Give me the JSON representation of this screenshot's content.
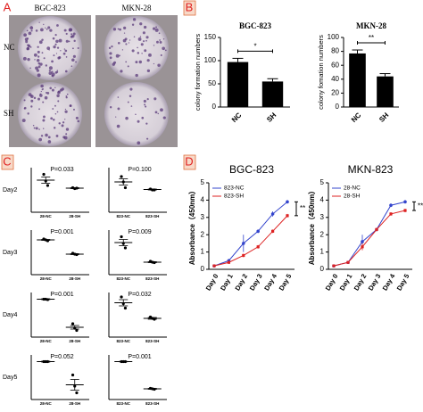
{
  "panels": {
    "letters": [
      "A",
      "B",
      "C",
      "D"
    ],
    "photo_columns": [
      "BGC-823",
      "MKN-28"
    ],
    "photo_rows": [
      "NC",
      "SH"
    ],
    "c_rows": [
      "Day2",
      "Day3",
      "Day4",
      "Day5"
    ]
  },
  "chart_data": [
    {
      "type": "bar",
      "title": "BGC-823",
      "y_label": "colony formation numbers",
      "categories": [
        "NC",
        "SH"
      ],
      "values": [
        97,
        55
      ],
      "errors": [
        8,
        6
      ],
      "color": "#000000",
      "ylim": [
        0,
        150
      ],
      "yticks": [
        0,
        50,
        100,
        150
      ],
      "annotation": "*"
    },
    {
      "type": "bar",
      "title": "MKN-28",
      "y_label": "colony fomation numbers",
      "categories": [
        "NC",
        "SH"
      ],
      "values": [
        77,
        44
      ],
      "errors": [
        5,
        4
      ],
      "color": "#000000",
      "ylim": [
        0,
        100
      ],
      "yticks": [
        0,
        20,
        40,
        60,
        80,
        100
      ],
      "annotation": "**"
    },
    {
      "type": "dot",
      "categories": [
        "28-NC",
        "28-SH"
      ],
      "points": [
        [
          0.85,
          0.7,
          0.6
        ],
        [
          0.55,
          0.53,
          0.54
        ]
      ],
      "values": [
        0.72,
        0.54
      ],
      "errors": [
        0.07,
        0.01
      ],
      "ylim": [
        0,
        1
      ],
      "annotation": "P=0.033"
    },
    {
      "type": "dot",
      "categories": [
        "823-NC",
        "823-SH"
      ],
      "points": [
        [
          0.8,
          0.68,
          0.55
        ],
        [
          0.52,
          0.5,
          0.5
        ]
      ],
      "values": [
        0.68,
        0.51
      ],
      "errors": [
        0.07,
        0.01
      ],
      "ylim": [
        0,
        1
      ],
      "annotation": "P=0.100"
    },
    {
      "type": "dot",
      "categories": [
        "28-NC",
        "28-SH"
      ],
      "points": [
        [
          0.8,
          0.78,
          0.76
        ],
        [
          0.48,
          0.46,
          0.45
        ]
      ],
      "values": [
        0.78,
        0.46
      ],
      "errors": [
        0.01,
        0.01
      ],
      "ylim": [
        0,
        1
      ],
      "annotation": "P=0.001"
    },
    {
      "type": "dot",
      "categories": [
        "823-NC",
        "823-SH"
      ],
      "points": [
        [
          0.85,
          0.7,
          0.6
        ],
        [
          0.3,
          0.28,
          0.27
        ]
      ],
      "values": [
        0.72,
        0.28
      ],
      "errors": [
        0.07,
        0.01
      ],
      "ylim": [
        0,
        1
      ],
      "annotation": "P=0.009"
    },
    {
      "type": "dot",
      "categories": [
        "28-NC",
        "28-SH"
      ],
      "points": [
        [
          0.85,
          0.85,
          0.84
        ],
        [
          0.3,
          0.2,
          0.15
        ]
      ],
      "values": [
        0.85,
        0.22
      ],
      "errors": [
        0.01,
        0.04
      ],
      "ylim": [
        0,
        1
      ],
      "annotation": "P=0.001"
    },
    {
      "type": "dot",
      "categories": [
        "823-NC",
        "823-SH"
      ],
      "points": [
        [
          0.9,
          0.75,
          0.65
        ],
        [
          0.45,
          0.42,
          0.4
        ]
      ],
      "values": [
        0.77,
        0.42
      ],
      "errors": [
        0.07,
        0.02
      ],
      "ylim": [
        0,
        1
      ],
      "annotation": "P=0.032"
    },
    {
      "type": "dot",
      "categories": [
        "28-NC",
        "28-SH"
      ],
      "points": [
        [
          0.85,
          0.85,
          0.85
        ],
        [
          0.55,
          0.3,
          0.15
        ]
      ],
      "values": [
        0.85,
        0.33
      ],
      "errors": [
        0.01,
        0.12
      ],
      "ylim": [
        0,
        1
      ],
      "annotation": "P=0.052"
    },
    {
      "type": "dot",
      "categories": [
        "823-NC",
        "823-SH"
      ],
      "points": [
        [
          0.85,
          0.85,
          0.85
        ],
        [
          0.25,
          0.24,
          0.23
        ]
      ],
      "values": [
        0.85,
        0.24
      ],
      "errors": [
        0.005,
        0.01
      ],
      "ylim": [
        0,
        1
      ],
      "annotation": "P=0.001"
    },
    {
      "type": "line",
      "title": "BGC-823",
      "y_label": "Absorbance（450nm）",
      "categories": [
        "Day 0",
        "Day 1",
        "Day 2",
        "Day 3",
        "Day 4",
        "Day 5"
      ],
      "series": [
        {
          "name": "823-NC",
          "color": "#3344cc",
          "values": [
            0.2,
            0.5,
            1.5,
            2.2,
            3.2,
            3.9
          ],
          "errors": [
            0.05,
            0.1,
            0.5,
            0.1,
            0.15,
            0.1
          ]
        },
        {
          "name": "823-SH",
          "color": "#dd2222",
          "values": [
            0.2,
            0.4,
            0.8,
            1.3,
            2.2,
            3.1
          ],
          "errors": [
            0.05,
            0.05,
            0.1,
            0.1,
            0.1,
            0.1
          ]
        }
      ],
      "ylim": [
        0,
        5
      ],
      "yticks": [
        0,
        1,
        2,
        3,
        4,
        5
      ],
      "annotation": "**"
    },
    {
      "type": "line",
      "title": "MKN-823",
      "y_label": "Absorbance（450nm）",
      "categories": [
        "Day 0",
        "Day 1",
        "Day 2",
        "Day 3",
        "Day 4",
        "Day 5"
      ],
      "series": [
        {
          "name": "28-NC",
          "color": "#3344cc",
          "values": [
            0.2,
            0.4,
            1.6,
            2.3,
            3.7,
            3.9
          ],
          "errors": [
            0.05,
            0.05,
            0.4,
            0.1,
            0.1,
            0.1
          ]
        },
        {
          "name": "28-SH",
          "color": "#dd2222",
          "values": [
            0.2,
            0.4,
            1.3,
            2.3,
            3.2,
            3.4
          ],
          "errors": [
            0.05,
            0.05,
            0.2,
            0.1,
            0.1,
            0.1
          ]
        }
      ],
      "ylim": [
        0,
        5
      ],
      "yticks": [
        0,
        1,
        2,
        3,
        4,
        5
      ],
      "annotation": "**"
    }
  ]
}
